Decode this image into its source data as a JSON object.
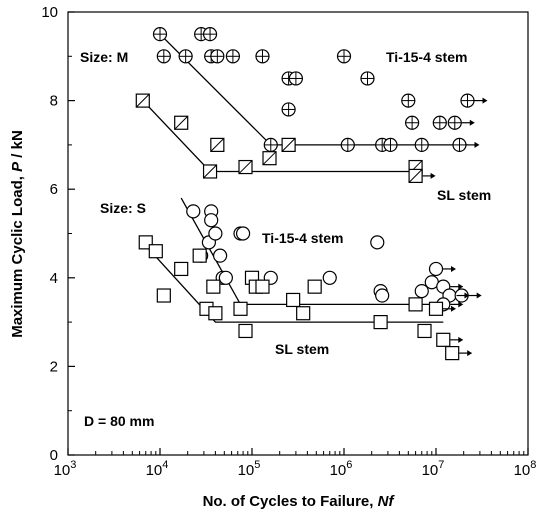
{
  "chart_data": {
    "type": "scatter",
    "title": "",
    "xlabel": "No. of Cycles to Failure, ",
    "xlabel_italic": "Nf",
    "ylabel": "Maximum Cyclic Load, ",
    "ylabel_italic": "P",
    "ylabel_unit": " / kN",
    "x_scale": "log",
    "xlim": [
      1000,
      100000000
    ],
    "ylim": [
      0,
      10
    ],
    "x_ticks": [
      {
        "base": "10",
        "exp": "3"
      },
      {
        "base": "10",
        "exp": "4"
      },
      {
        "base": "10",
        "exp": "5"
      },
      {
        "base": "10",
        "exp": "6"
      },
      {
        "base": "10",
        "exp": "7"
      },
      {
        "base": "10",
        "exp": "8"
      }
    ],
    "y_ticks": [
      "0",
      "2",
      "4",
      "6",
      "8",
      "10"
    ],
    "grid": false,
    "legend": "none",
    "annotations": {
      "size_m": "Size: M",
      "size_s": "Size: S",
      "ti_m": "Ti-15-4 stem",
      "sl_m": "SL stem",
      "ti_s": "Ti-15-4 stem",
      "sl_s": "SL stem",
      "d": "D = 80 mm"
    },
    "series": [
      {
        "marker": "circle-plus",
        "points": [
          [
            10000,
            9.5
          ],
          [
            11000,
            9.0
          ],
          [
            19000,
            9.0
          ],
          [
            28000,
            9.5
          ],
          [
            35000,
            9.5
          ],
          [
            36000,
            9.0
          ],
          [
            42000,
            9.0
          ],
          [
            62000,
            9.0
          ],
          [
            130000,
            9.0
          ],
          [
            250000,
            8.5
          ],
          [
            300000,
            8.5
          ],
          [
            250000,
            7.8
          ],
          [
            1000000,
            9.0
          ],
          [
            1800000,
            8.5
          ],
          [
            5000000,
            8.0
          ],
          [
            5500000,
            7.5
          ],
          [
            11000000,
            7.5
          ],
          [
            16000000,
            7.5
          ],
          [
            22000000,
            8.0
          ],
          [
            160000,
            7.0
          ],
          [
            1100000,
            7.0
          ],
          [
            2600000,
            7.0
          ],
          [
            3200000,
            7.0
          ],
          [
            7000000,
            7.0
          ],
          [
            18000000,
            7.0
          ]
        ],
        "runouts": [
          [
            22000000,
            8.0
          ],
          [
            16000000,
            7.5
          ],
          [
            18000000,
            7.0
          ]
        ]
      },
      {
        "marker": "square-slash",
        "points": [
          [
            6500,
            8.0
          ],
          [
            17000,
            7.5
          ],
          [
            42000,
            7.0
          ],
          [
            35000,
            6.4
          ],
          [
            85000,
            6.5
          ],
          [
            155000,
            6.7
          ],
          [
            250000,
            7.0
          ],
          [
            6000000,
            6.5
          ],
          [
            6000000,
            6.3
          ]
        ],
        "runouts": [
          [
            6000000,
            6.3
          ]
        ]
      },
      {
        "marker": "circle",
        "points": [
          [
            23000,
            5.5
          ],
          [
            28000,
            4.5
          ],
          [
            36000,
            5.5
          ],
          [
            36000,
            5.3
          ],
          [
            34000,
            4.8
          ],
          [
            40000,
            5.0
          ],
          [
            45000,
            4.5
          ],
          [
            48000,
            4.0
          ],
          [
            52000,
            4.0
          ],
          [
            75000,
            5.0
          ],
          [
            80000,
            5.0
          ],
          [
            160000,
            4.0
          ],
          [
            700000,
            4.0
          ],
          [
            2300000,
            4.8
          ],
          [
            2500000,
            3.7
          ],
          [
            2600000,
            3.6
          ],
          [
            7000000,
            3.7
          ],
          [
            9000000,
            3.9
          ],
          [
            10000000,
            4.2
          ],
          [
            12000000,
            3.8
          ],
          [
            14000000,
            3.6
          ],
          [
            19000000,
            3.6
          ],
          [
            12000000,
            3.4
          ]
        ],
        "runouts": [
          [
            10000000,
            4.2
          ],
          [
            12000000,
            3.8
          ],
          [
            14000000,
            3.6
          ],
          [
            19000000,
            3.6
          ],
          [
            12000000,
            3.4
          ]
        ]
      },
      {
        "marker": "square",
        "points": [
          [
            7000,
            4.8
          ],
          [
            9000,
            4.6
          ],
          [
            11000,
            3.6
          ],
          [
            17000,
            4.2
          ],
          [
            27000,
            4.5
          ],
          [
            32000,
            3.3
          ],
          [
            38000,
            3.8
          ],
          [
            40000,
            3.2
          ],
          [
            75000,
            3.3
          ],
          [
            85000,
            2.8
          ],
          [
            100000,
            4.0
          ],
          [
            110000,
            3.8
          ],
          [
            130000,
            3.8
          ],
          [
            280000,
            3.5
          ],
          [
            360000,
            3.2
          ],
          [
            480000,
            3.8
          ],
          [
            2500000,
            3.0
          ],
          [
            6000000,
            3.4
          ],
          [
            7500000,
            2.8
          ],
          [
            12000000,
            2.6
          ],
          [
            15000000,
            2.3
          ],
          [
            10000000,
            3.3
          ]
        ],
        "runouts": [
          [
            10000000,
            3.3
          ],
          [
            12000000,
            2.6
          ],
          [
            15000000,
            2.3
          ]
        ]
      }
    ],
    "trend_lines": [
      [
        [
          10000,
          9.5
        ],
        [
          160000,
          7.0
        ],
        [
          22000000,
          7.0
        ]
      ],
      [
        [
          6500,
          8.0
        ],
        [
          35000,
          6.4
        ],
        [
          6000000,
          6.4
        ]
      ],
      [
        [
          17000,
          5.8
        ],
        [
          75000,
          3.4
        ],
        [
          12000000,
          3.4
        ]
      ],
      [
        [
          6500,
          4.8
        ],
        [
          40000,
          3.0
        ],
        [
          12000000,
          3.0
        ]
      ]
    ]
  }
}
